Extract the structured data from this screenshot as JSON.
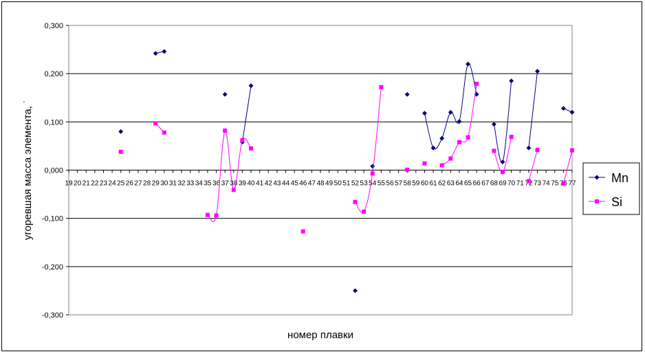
{
  "chart_data": {
    "type": "line",
    "xlabel": "номер плавки",
    "ylabel": "угоревшая масса элемента, ˙",
    "ylim": [
      -0.3,
      0.3
    ],
    "yticks": [
      0.3,
      0.2,
      0.1,
      0.0,
      -0.1,
      -0.2,
      -0.3
    ],
    "ytick_labels": [
      "0,300",
      "0,200",
      "0,100",
      "0,000",
      "-0,100",
      "-0,200",
      "-0,300"
    ],
    "x": [
      19,
      20,
      21,
      22,
      23,
      24,
      25,
      26,
      27,
      28,
      29,
      30,
      31,
      32,
      33,
      34,
      35,
      36,
      37,
      38,
      39,
      40,
      41,
      42,
      43,
      44,
      45,
      46,
      47,
      48,
      49,
      50,
      51,
      52,
      53,
      54,
      55,
      56,
      57,
      58,
      59,
      60,
      61,
      62,
      63,
      64,
      65,
      66,
      67,
      68,
      69,
      70,
      71,
      72,
      73,
      74,
      75,
      76,
      77
    ],
    "grid": "horizontal",
    "legend_position": "right",
    "series": [
      {
        "name": "Mn",
        "color": "#000080",
        "marker": "diamond",
        "values": [
          null,
          null,
          null,
          null,
          null,
          null,
          0.08,
          null,
          null,
          null,
          0.242,
          0.246,
          null,
          null,
          null,
          null,
          null,
          null,
          0.157,
          null,
          0.058,
          0.175,
          null,
          null,
          null,
          null,
          null,
          null,
          null,
          null,
          null,
          null,
          null,
          -0.25,
          null,
          0.008,
          null,
          null,
          null,
          0.157,
          null,
          0.118,
          0.046,
          0.066,
          0.12,
          0.101,
          0.22,
          0.157,
          null,
          0.095,
          0.017,
          0.185,
          null,
          0.046,
          0.205,
          null,
          null,
          0.128,
          0.12
        ]
      },
      {
        "name": "Si",
        "color": "#FF00FF",
        "marker": "square",
        "values": [
          null,
          null,
          null,
          null,
          null,
          null,
          0.038,
          null,
          null,
          null,
          0.097,
          0.078,
          null,
          null,
          null,
          null,
          -0.093,
          -0.094,
          0.082,
          -0.041,
          0.062,
          0.045,
          null,
          null,
          null,
          null,
          null,
          -0.127,
          null,
          null,
          null,
          null,
          null,
          -0.066,
          -0.086,
          -0.007,
          0.172,
          null,
          null,
          0.001,
          null,
          0.014,
          null,
          0.01,
          0.024,
          0.058,
          0.068,
          0.179,
          null,
          0.04,
          -0.004,
          0.069,
          null,
          -0.023,
          0.042,
          null,
          null,
          -0.028,
          0.041
        ]
      }
    ]
  }
}
